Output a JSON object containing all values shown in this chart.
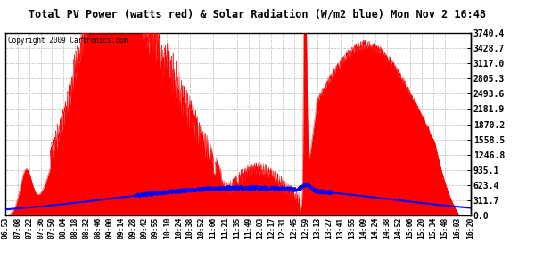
{
  "title": "Total PV Power (watts red) & Solar Radiation (W/m2 blue) Mon Nov 2 16:48",
  "copyright": "Copyright 2009 Cartronics.com",
  "y_max": 3740.4,
  "y_min": 0.0,
  "y_ticks": [
    0.0,
    311.7,
    623.4,
    935.1,
    1246.8,
    1558.5,
    1870.2,
    2181.9,
    2493.6,
    2805.3,
    3117.0,
    3428.7,
    3740.4
  ],
  "bg_color": "#ffffff",
  "plot_bg_color": "#ffffff",
  "grid_color": "#bbbbbb",
  "red_color": "#ff0000",
  "blue_color": "#0000ff",
  "x_labels": [
    "06:53",
    "07:08",
    "07:22",
    "07:36",
    "07:50",
    "08:04",
    "08:18",
    "08:32",
    "08:46",
    "09:00",
    "09:14",
    "09:28",
    "09:42",
    "09:55",
    "10:10",
    "10:24",
    "10:38",
    "10:52",
    "11:06",
    "11:21",
    "11:35",
    "11:49",
    "12:03",
    "12:17",
    "12:31",
    "12:45",
    "12:59",
    "13:13",
    "13:27",
    "13:41",
    "13:55",
    "14:09",
    "14:24",
    "14:38",
    "14:52",
    "15:06",
    "15:20",
    "15:34",
    "15:48",
    "16:03",
    "16:20"
  ],
  "x_times": [
    6.883,
    7.133,
    7.367,
    7.6,
    7.833,
    8.067,
    8.3,
    8.533,
    8.767,
    9.0,
    9.233,
    9.467,
    9.7,
    9.917,
    10.167,
    10.4,
    10.633,
    10.867,
    11.1,
    11.35,
    11.583,
    11.817,
    12.05,
    12.283,
    12.517,
    12.75,
    12.983,
    13.217,
    13.45,
    13.683,
    13.917,
    14.15,
    14.4,
    14.633,
    14.867,
    15.1,
    15.333,
    15.567,
    15.8,
    16.05,
    16.333
  ]
}
